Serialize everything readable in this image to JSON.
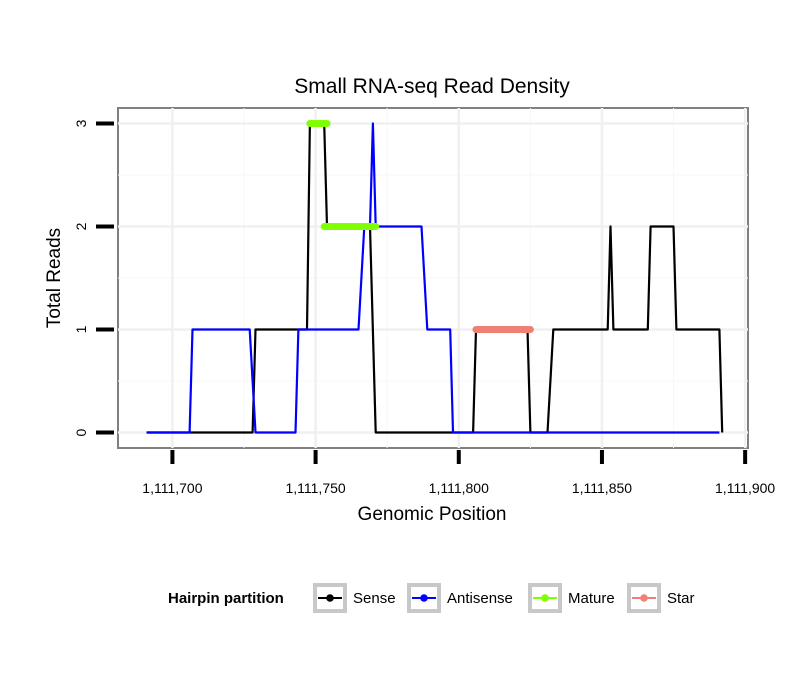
{
  "chart_data": {
    "type": "line",
    "title": "Small RNA-seq Read Density",
    "xlabel": "Genomic Position",
    "ylabel": "Total Reads",
    "xlim": [
      1111681,
      1111901
    ],
    "ylim": [
      -0.15,
      3.15
    ],
    "x_ticks": [
      {
        "value": 1111700,
        "label": "1,111,700"
      },
      {
        "value": 1111750,
        "label": "1,111,750"
      },
      {
        "value": 1111800,
        "label": "1,111,800"
      },
      {
        "value": 1111850,
        "label": "1,111,850"
      },
      {
        "value": 1111900,
        "label": "1,111,900"
      }
    ],
    "y_ticks": [
      {
        "value": 0,
        "label": "0"
      },
      {
        "value": 1,
        "label": "1"
      },
      {
        "value": 2,
        "label": "2"
      },
      {
        "value": 3,
        "label": "3"
      }
    ],
    "series": [
      {
        "name": "Sense",
        "color": "#000000",
        "style": "line",
        "x": [
          1111691,
          1111728,
          1111729,
          1111747,
          1111748,
          1111753,
          1111754,
          1111769,
          1111771,
          1111805,
          1111806,
          1111824,
          1111825,
          1111831,
          1111833,
          1111852,
          1111853,
          1111854,
          1111866,
          1111867,
          1111875,
          1111876,
          1111891,
          1111892
        ],
        "values": [
          0,
          0,
          1,
          1,
          3,
          3,
          2,
          2,
          0,
          0,
          1,
          1,
          0,
          0,
          1,
          1,
          2,
          1,
          1,
          2,
          2,
          1,
          1,
          0
        ]
      },
      {
        "name": "Antisense",
        "color": "#0000ff",
        "style": "line",
        "x": [
          1111691,
          1111706,
          1111707,
          1111727,
          1111729,
          1111743,
          1111744,
          1111765,
          1111767,
          1111769,
          1111770,
          1111771,
          1111787,
          1111789,
          1111797,
          1111798,
          1111891
        ],
        "values": [
          0,
          0,
          1,
          1,
          0,
          0,
          1,
          1,
          2,
          2,
          3,
          2,
          2,
          1,
          1,
          0,
          0
        ]
      },
      {
        "name": "Mature",
        "color": "#7fff00",
        "style": "segment",
        "x": [
          1111748,
          1111754,
          1111753,
          1111771
        ],
        "values": [
          3,
          3,
          2,
          2
        ],
        "segments": [
          [
            0,
            1
          ],
          [
            2,
            3
          ]
        ]
      },
      {
        "name": "Star",
        "color": "#f08073",
        "style": "segment",
        "x": [
          1111806,
          1111825
        ],
        "values": [
          1,
          1
        ],
        "segments": [
          [
            0,
            1
          ]
        ]
      }
    ],
    "legend": {
      "title": "Hairpin partition",
      "placement": "bottom",
      "entries": [
        {
          "label": "Sense",
          "color": "#000000"
        },
        {
          "label": "Antisense",
          "color": "#0000ff"
        },
        {
          "label": "Mature",
          "color": "#7fff00"
        },
        {
          "label": "Star",
          "color": "#f08073"
        }
      ]
    }
  }
}
